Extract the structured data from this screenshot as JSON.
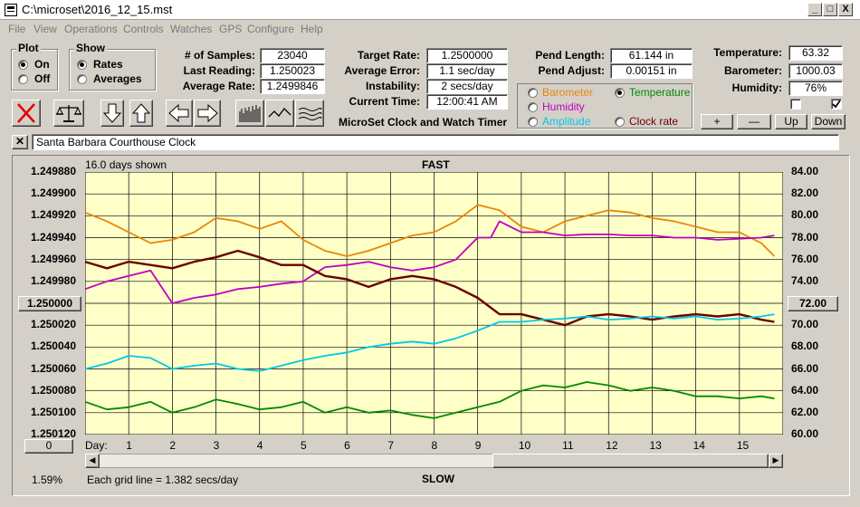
{
  "window": {
    "title": "C:\\microset\\2016_12_15.mst",
    "buttons": {
      "minimize": "_",
      "maximize": "□",
      "close": "X"
    }
  },
  "menu": [
    "File",
    "View",
    "Operations",
    "Controls",
    "Watches",
    "GPS",
    "Configure",
    "Help"
  ],
  "plot_group": {
    "title": "Plot",
    "on": "On",
    "off": "Off",
    "selected": "On"
  },
  "show_group": {
    "title": "Show",
    "rates": "Rates",
    "averages": "Averages",
    "selected": "Rates"
  },
  "stats": {
    "samples_label": "# of Samples:",
    "samples": "23040",
    "last_reading_label": "Last Reading:",
    "last_reading": "1.250023",
    "average_rate_label": "Average Rate:",
    "average_rate": "1.2499846",
    "target_rate_label": "Target Rate:",
    "target_rate": "1.2500000",
    "average_error_label": "Average Error:",
    "average_error": "1.1 sec/day",
    "instability_label": "Instability:",
    "instability": "2 secs/day",
    "current_time_label": "Current Time:",
    "current_time": "12:00:41 AM",
    "pend_length_label": "Pend Length:",
    "pend_length": "61.144 in",
    "pend_adjust_label": "Pend Adjust:",
    "pend_adjust": "0.00151 in",
    "temperature_label": "Temperature:",
    "temperature": "63.32",
    "barometer_label": "Barometer:",
    "barometer": "1000.03",
    "humidity_label": "Humidity:",
    "humidity": "76%"
  },
  "app_subtitle": "MicroSet Clock and Watch Timer",
  "options": {
    "barometer": "Barometer",
    "temperature": "Temperature",
    "humidity": "Humidity",
    "amplitude": "Amplitude",
    "clock_rate": "Clock rate",
    "selected": "Temperature",
    "colors": {
      "barometer": "#e8860a",
      "temperature": "#008a00",
      "humidity": "#c000c0",
      "amplitude": "#00c8e8",
      "clock_rate": "#6a0000"
    }
  },
  "right_buttons": {
    "plus": "+",
    "minus": "—",
    "up": "Up",
    "down": "Down"
  },
  "checkboxes": {
    "first": false,
    "second": true
  },
  "clock_name": "Santa Barbara Courthouse Clock",
  "chart_data": {
    "type": "line",
    "days_shown": "16.0 days shown",
    "top_label": "FAST",
    "bottom_label": "SLOW",
    "grid_note": "Each grid line = 1.382 secs/day",
    "percent": "1.59%",
    "left_axis_ticks": [
      "1.249880",
      "1.249900",
      "1.249920",
      "1.249940",
      "1.249960",
      "1.249980",
      "1.250000",
      "1.250020",
      "1.250040",
      "1.250060",
      "1.250080",
      "1.250100",
      "1.250120"
    ],
    "left_center_button": "1.250000",
    "left_bottom_button": "0",
    "right_axis_ticks": [
      "84.00",
      "82.00",
      "80.00",
      "78.00",
      "76.00",
      "74.00",
      "72.00",
      "70.00",
      "68.00",
      "66.00",
      "64.00",
      "62.00",
      "60.00"
    ],
    "right_center_button": "72.00",
    "x_label": "Day:",
    "x_ticks": [
      "1",
      "2",
      "3",
      "4",
      "5",
      "6",
      "7",
      "8",
      "9",
      "10",
      "11",
      "12",
      "13",
      "14",
      "15"
    ],
    "xlim": [
      0,
      16
    ],
    "ylim_left": [
      1.24988,
      1.25012
    ],
    "ylim_right": [
      60,
      84
    ],
    "background": "#ffffc8",
    "series": [
      {
        "key": "barometer",
        "color": "#e8860a",
        "x": [
          0,
          0.5,
          1,
          1.5,
          2,
          2.5,
          3,
          3.5,
          4,
          4.5,
          5,
          5.5,
          6,
          6.5,
          7,
          7.5,
          8,
          8.5,
          9,
          9.5,
          10,
          10.5,
          11,
          11.5,
          12,
          12.5,
          13,
          13.5,
          14,
          14.5,
          15,
          15.5,
          15.8
        ],
        "y": [
          80.3,
          79.5,
          78.5,
          77.5,
          77.8,
          78.5,
          79.8,
          79.5,
          78.8,
          79.5,
          77.8,
          76.8,
          76.3,
          76.8,
          77.5,
          78.2,
          78.5,
          79.5,
          81.0,
          80.5,
          79.0,
          78.5,
          79.5,
          80.0,
          80.5,
          80.3,
          79.8,
          79.5,
          79.0,
          78.5,
          78.5,
          77.5,
          76.3
        ]
      },
      {
        "key": "humidity",
        "color": "#c000c0",
        "x": [
          0,
          0.5,
          1,
          1.5,
          2,
          2.5,
          3,
          3.5,
          4,
          4.5,
          5,
          5.5,
          6,
          6.5,
          7,
          7.5,
          8,
          8.5,
          9,
          9.3,
          9.5,
          10,
          10.5,
          11,
          11.5,
          12,
          12.5,
          13,
          13.5,
          14,
          14.5,
          15,
          15.5,
          15.8
        ],
        "y": [
          73.3,
          74.0,
          74.5,
          75.0,
          72.0,
          72.5,
          72.8,
          73.3,
          73.5,
          73.8,
          74.0,
          75.3,
          75.5,
          75.8,
          75.3,
          75.0,
          75.3,
          76.0,
          78.0,
          78.0,
          79.5,
          78.5,
          78.5,
          78.2,
          78.3,
          78.3,
          78.2,
          78.2,
          78.0,
          78.0,
          77.8,
          77.9,
          78.0,
          78.2
        ]
      },
      {
        "key": "clock_rate",
        "color": "#6a0000",
        "x": [
          0,
          0.5,
          1,
          1.5,
          2,
          2.5,
          3,
          3.5,
          4,
          4.5,
          5,
          5.5,
          6,
          6.5,
          7,
          7.5,
          8,
          8.5,
          9,
          9.5,
          10,
          10.5,
          11,
          11.5,
          12,
          12.5,
          13,
          13.5,
          14,
          14.5,
          15,
          15.5,
          15.8
        ],
        "y": [
          1.249962,
          1.249968,
          1.249962,
          1.249965,
          1.249968,
          1.249962,
          1.249958,
          1.249952,
          1.249958,
          1.249965,
          1.249965,
          1.249975,
          1.249978,
          1.249985,
          1.249978,
          1.249975,
          1.249978,
          1.249985,
          1.249995,
          1.25001,
          1.25001,
          1.250015,
          1.25002,
          1.250012,
          1.25001,
          1.250012,
          1.250015,
          1.250012,
          1.25001,
          1.250012,
          1.25001,
          1.250015,
          1.250017
        ]
      },
      {
        "key": "amplitude",
        "color": "#00c8e8",
        "x": [
          0,
          0.5,
          1,
          1.5,
          2,
          2.5,
          3,
          3.5,
          4,
          4.5,
          5,
          5.5,
          6,
          6.5,
          7,
          7.5,
          8,
          8.5,
          9,
          9.5,
          10,
          10.5,
          11,
          11.5,
          12,
          12.5,
          13,
          13.5,
          14,
          14.5,
          15,
          15.5,
          15.8
        ],
        "y": [
          66.0,
          66.5,
          67.2,
          67.0,
          66.0,
          66.3,
          66.5,
          66.0,
          65.8,
          66.3,
          66.8,
          67.2,
          67.5,
          68.0,
          68.3,
          68.5,
          68.3,
          68.8,
          69.5,
          70.3,
          70.3,
          70.5,
          70.6,
          70.8,
          70.5,
          70.6,
          70.8,
          70.6,
          70.8,
          70.5,
          70.6,
          70.8,
          71.0
        ]
      },
      {
        "key": "temperature",
        "color": "#008a00",
        "x": [
          0,
          0.5,
          1,
          1.5,
          2,
          2.5,
          3,
          3.5,
          4,
          4.5,
          5,
          5.5,
          6,
          6.5,
          7,
          7.5,
          8,
          8.5,
          9,
          9.5,
          10,
          10.5,
          11,
          11.5,
          12,
          12.5,
          13,
          13.5,
          14,
          14.5,
          15,
          15.5,
          15.8
        ],
        "y": [
          63.0,
          62.3,
          62.5,
          63.0,
          62.0,
          62.5,
          63.2,
          62.8,
          62.3,
          62.5,
          63.0,
          62.0,
          62.5,
          62.0,
          62.2,
          61.8,
          61.5,
          62.0,
          62.5,
          63.0,
          64.0,
          64.5,
          64.3,
          64.8,
          64.5,
          64.0,
          64.3,
          64.0,
          63.5,
          63.5,
          63.3,
          63.5,
          63.3
        ]
      }
    ]
  }
}
